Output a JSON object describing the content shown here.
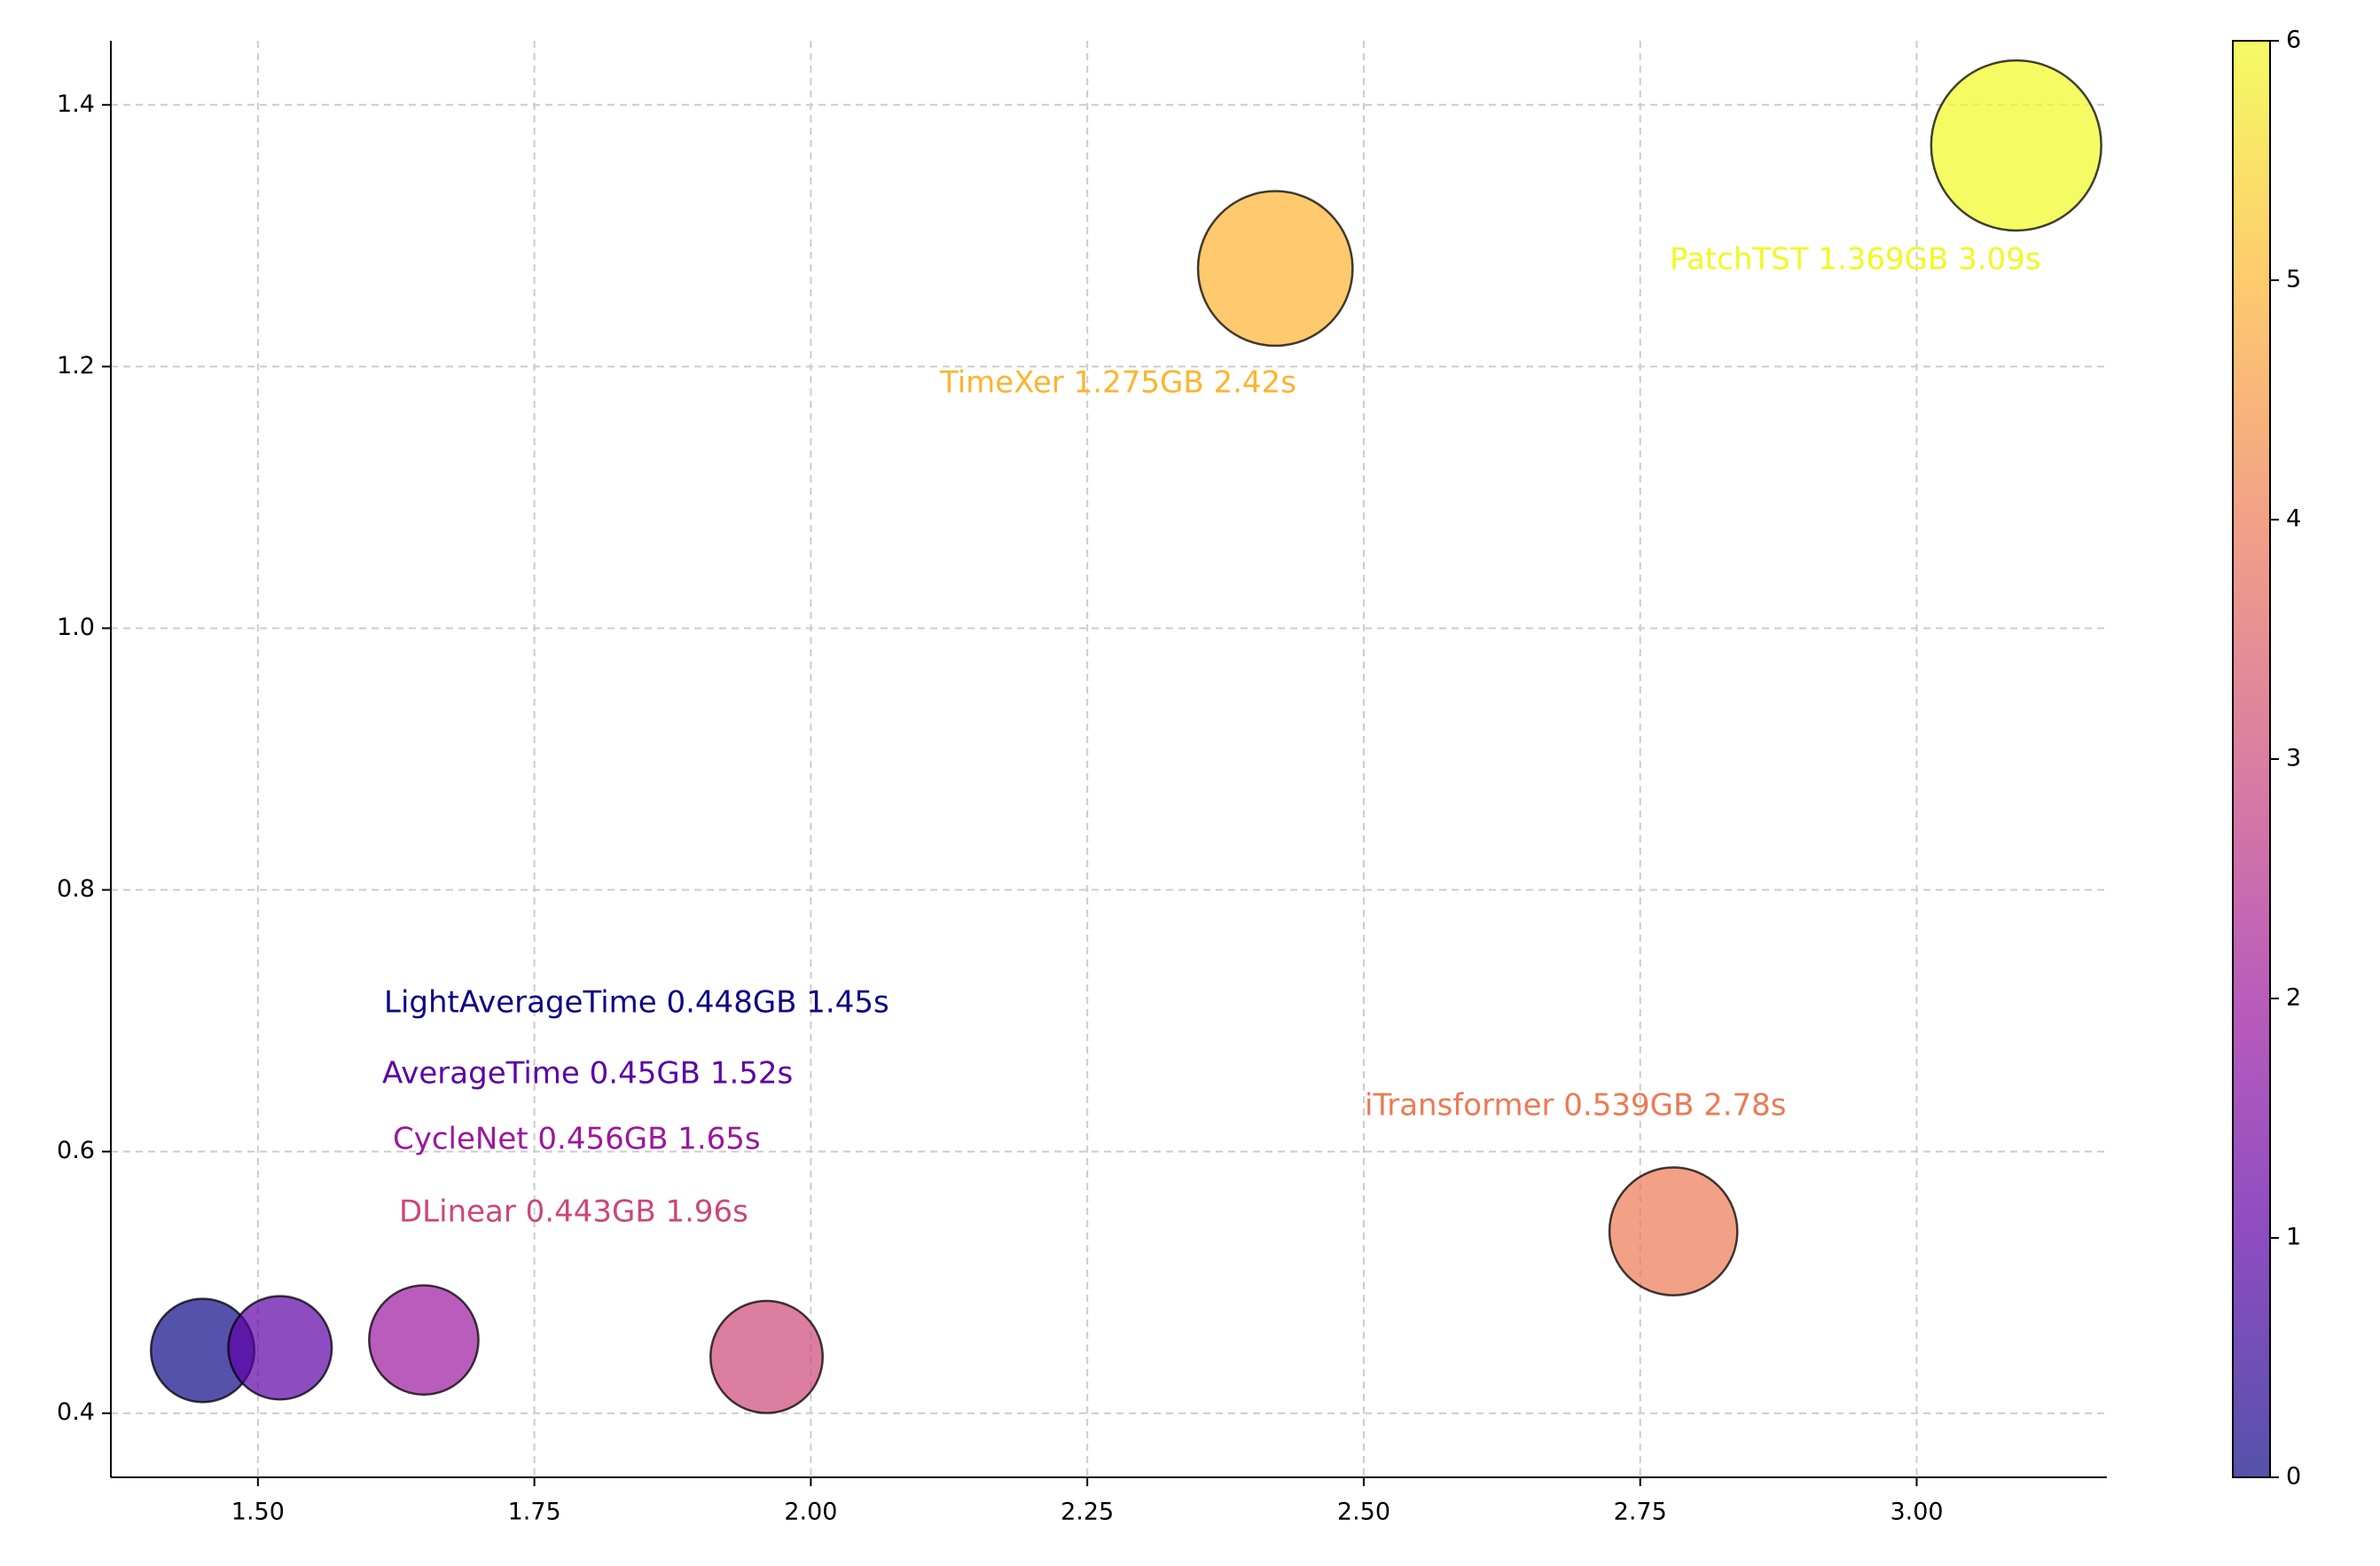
{
  "chart_data": {
    "type": "scatter",
    "series": [
      {
        "names": [
          "LightAverageTime",
          "AverageTime",
          "CycleNet",
          "DLinear",
          "iTransformer",
          "TimeXer",
          "PatchTST"
        ],
        "labels": [
          "LightAverageTime 0.448GB 1.45s",
          "AverageTime 0.45GB 1.52s",
          "CycleNet 0.456GB 1.65s",
          "DLinear 0.443GB 1.96s",
          "iTransformer 0.539GB 2.78s",
          "TimeXer 1.275GB 2.42s",
          "PatchTST 1.369GB 3.09s"
        ],
        "x": [
          1.45,
          1.52,
          1.65,
          1.96,
          2.78,
          2.42,
          3.09
        ],
        "values": [
          0.448,
          0.45,
          0.456,
          0.443,
          0.539,
          1.275,
          1.369
        ],
        "sizes": [
          3400,
          3400,
          3800,
          4000,
          5200,
          7600,
          9200
        ],
        "color_values": [
          0,
          1,
          2,
          3,
          4,
          5,
          6
        ],
        "colors": [
          "#0d0887",
          "#5c01a6",
          "#9c179e",
          "#cc4778",
          "#ed7953",
          "#fdb42f",
          "#f0f921"
        ]
      }
    ],
    "marker_opacity": 0.7,
    "xlim": [
      1.367,
      3.172
    ],
    "xticks": [
      {
        "value": 1.5,
        "label": "1.50"
      },
      1.75,
      {
        "value": 2.0,
        "label": "2.00"
      },
      2.25,
      {
        "value": 2.5,
        "label": "2.50"
      },
      2.75,
      {
        "value": 3.0,
        "label": "3.00"
      }
    ],
    "ylim": [
      0.351,
      1.449
    ],
    "yticks": [
      0.4,
      0.6,
      0.8,
      {
        "value": 1.0,
        "label": "1.0"
      },
      1.2,
      1.4
    ],
    "grid": true,
    "colorbar": {
      "clim": [
        0,
        6
      ],
      "ticks": [
        0,
        1,
        2,
        3,
        4,
        5,
        6
      ],
      "colormap": [
        "#0d0887",
        "#5c01a6",
        "#9c179e",
        "#cc4778",
        "#ed7953",
        "#fdb42f",
        "#f0f921"
      ]
    }
  }
}
